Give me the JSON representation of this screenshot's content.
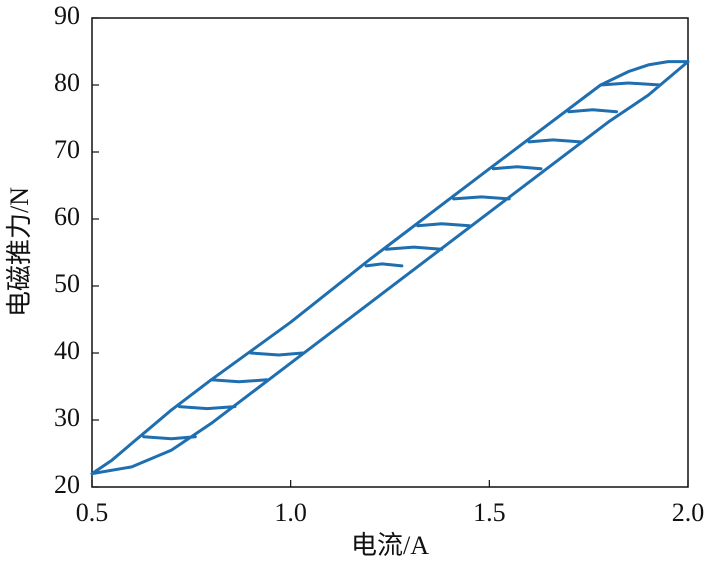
{
  "chart_data": {
    "type": "line",
    "x_label": "电流/A",
    "y_label": "电磁推力/N",
    "color": "#1f6fb0",
    "x": [
      0.5,
      0.6,
      0.7,
      0.8,
      1.0,
      1.2,
      1.5,
      1.8,
      1.9,
      2.0,
      1.95,
      1.9,
      1.85,
      1.78,
      1.5,
      1.2,
      1.0,
      0.8,
      0.7,
      0.65,
      0.6,
      0.55,
      0.5,
      null,
      1.93,
      1.85,
      1.78,
      null,
      1.82,
      1.76,
      1.7,
      null,
      1.73,
      1.66,
      1.6,
      null,
      1.63,
      1.57,
      1.51,
      null,
      1.55,
      1.48,
      1.41,
      null,
      1.45,
      1.38,
      1.32,
      null,
      1.38,
      1.31,
      1.24,
      null,
      1.28,
      1.23,
      1.19,
      null,
      0.63,
      0.7,
      0.76,
      null,
      0.72,
      0.79,
      0.86,
      null,
      0.8,
      0.87,
      0.94,
      null,
      0.9,
      0.97,
      1.03
    ],
    "values": [
      22,
      23,
      25.5,
      29.5,
      38.5,
      47.5,
      61,
      74.5,
      78.5,
      83.5,
      83.5,
      83,
      82,
      80,
      67.5,
      54,
      44.6,
      36,
      31.5,
      29,
      26.5,
      24,
      22,
      null,
      80,
      80.3,
      80,
      null,
      76,
      76.3,
      76,
      null,
      71.5,
      71.8,
      71.5,
      null,
      67.5,
      67.8,
      67.5,
      null,
      63,
      63.3,
      63,
      null,
      59,
      59.3,
      59,
      null,
      55.5,
      55.8,
      55.5,
      null,
      53,
      53.3,
      53,
      null,
      27.5,
      27.2,
      27.5,
      null,
      32,
      31.7,
      32,
      null,
      36,
      35.7,
      36,
      null,
      40,
      39.7,
      40
    ],
    "xlim": [
      0.5,
      2.0
    ],
    "xticks": [
      0.5,
      {
        "value": 1.0,
        "label": "1.0"
      },
      1.5,
      {
        "value": 2.0,
        "label": "2.0"
      }
    ],
    "ylim": [
      20,
      90
    ],
    "yticks": [
      20,
      30,
      40,
      50,
      60,
      70,
      80,
      90
    ],
    "grid": false
  }
}
